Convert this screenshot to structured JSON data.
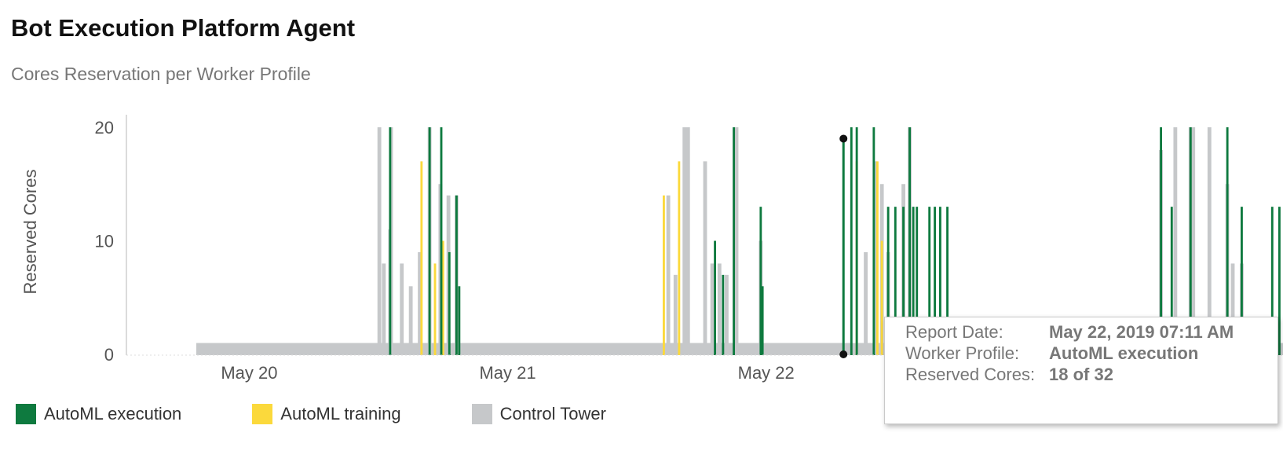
{
  "header": {
    "title": "Bot Execution Platform Agent",
    "subtitle": "Cores Reservation per Worker Profile"
  },
  "colors": {
    "automl_execution": "#0e7a3f",
    "automl_training": "#fbd93c",
    "control_tower": "#c6c8ca"
  },
  "chart_data": {
    "type": "area",
    "ylabel": "Reserved Cores",
    "ylim": [
      0,
      20
    ],
    "yticks": [
      "0",
      "10",
      "20"
    ],
    "xticks": [
      "May 20",
      "May 21",
      "May 22"
    ],
    "xlim": [
      "2019-05-19T12:40",
      "2019-05-24T00:00"
    ],
    "grid": false,
    "legend_position": "bottom-left",
    "series": [
      {
        "name": "Control Tower",
        "color": "#c6c8ca",
        "baseline": 1,
        "spikes": [
          [
            "2019-05-20T12:05",
            20
          ],
          [
            "2019-05-20T12:30",
            8
          ],
          [
            "2019-05-20T13:05",
            11
          ],
          [
            "2019-05-20T13:10",
            20
          ],
          [
            "2019-05-20T14:10",
            8
          ],
          [
            "2019-05-20T15:00",
            6
          ],
          [
            "2019-05-20T15:50",
            9
          ],
          [
            "2019-05-20T16:45",
            20
          ],
          [
            "2019-05-20T17:45",
            15
          ],
          [
            "2019-05-20T18:30",
            14
          ],
          [
            "2019-05-20T19:15",
            14
          ],
          [
            "2019-05-21T14:55",
            14
          ],
          [
            "2019-05-21T15:35",
            7
          ],
          [
            "2019-05-21T16:25",
            20
          ],
          [
            "2019-05-21T16:45",
            20
          ],
          [
            "2019-05-21T18:20",
            17
          ],
          [
            "2019-05-21T19:00",
            8
          ],
          [
            "2019-05-21T19:40",
            8
          ],
          [
            "2019-05-21T20:20",
            7
          ],
          [
            "2019-05-21T21:15",
            20
          ],
          [
            "2019-05-21T23:30",
            10
          ],
          [
            "2019-05-22T09:15",
            9
          ],
          [
            "2019-05-22T10:05",
            17
          ],
          [
            "2019-05-22T10:45",
            15
          ],
          [
            "2019-05-22T11:20",
            9
          ],
          [
            "2019-05-22T12:45",
            15
          ],
          [
            "2019-05-22T13:20",
            20
          ],
          [
            "2019-05-23T12:40",
            18
          ],
          [
            "2019-05-23T14:00",
            20
          ],
          [
            "2019-05-23T15:25",
            20
          ],
          [
            "2019-05-23T15:40",
            20
          ],
          [
            "2019-05-23T17:10",
            20
          ],
          [
            "2019-05-23T18:50",
            15
          ],
          [
            "2019-05-23T19:20",
            8
          ],
          [
            "2019-05-23T20:10",
            8
          ]
        ]
      },
      {
        "name": "AutoML training",
        "color": "#fbd93c",
        "baseline": 0,
        "spikes": [
          [
            "2019-05-20T16:00",
            17
          ],
          [
            "2019-05-20T17:15",
            8
          ],
          [
            "2019-05-20T18:00",
            10
          ],
          [
            "2019-05-21T14:30",
            14
          ],
          [
            "2019-05-21T15:55",
            17
          ],
          [
            "2019-05-22T08:25",
            17
          ],
          [
            "2019-05-22T10:20",
            17
          ],
          [
            "2019-05-22T10:45",
            10
          ]
        ]
      },
      {
        "name": "AutoML execution",
        "color": "#0e7a3f",
        "baseline": 0,
        "spikes": [
          [
            "2019-05-20T13:05",
            20
          ],
          [
            "2019-05-20T16:45",
            20
          ],
          [
            "2019-05-20T17:50",
            20
          ],
          [
            "2019-05-20T18:35",
            9
          ],
          [
            "2019-05-20T19:15",
            14
          ],
          [
            "2019-05-20T19:30",
            6
          ],
          [
            "2019-05-21T19:15",
            10
          ],
          [
            "2019-05-21T20:00",
            7
          ],
          [
            "2019-05-21T21:00",
            20
          ],
          [
            "2019-05-21T23:30",
            13
          ],
          [
            "2019-05-21T23:40",
            6
          ],
          [
            "2019-05-22T07:55",
            20
          ],
          [
            "2019-05-22T08:25",
            20
          ],
          [
            "2019-05-22T10:00",
            20
          ],
          [
            "2019-05-22T11:20",
            13
          ],
          [
            "2019-05-22T12:00",
            13
          ],
          [
            "2019-05-22T12:45",
            13
          ],
          [
            "2019-05-22T13:20",
            20
          ],
          [
            "2019-05-22T13:40",
            13
          ],
          [
            "2019-05-22T14:00",
            13
          ],
          [
            "2019-05-22T15:10",
            13
          ],
          [
            "2019-05-22T15:40",
            13
          ],
          [
            "2019-05-22T16:10",
            13
          ],
          [
            "2019-05-22T16:50",
            13
          ],
          [
            "2019-05-23T12:40",
            20
          ],
          [
            "2019-05-23T13:40",
            13
          ],
          [
            "2019-05-23T15:25",
            20
          ],
          [
            "2019-05-23T18:50",
            20
          ],
          [
            "2019-05-23T20:10",
            13
          ],
          [
            "2019-05-23T23:00",
            13
          ],
          [
            "2019-05-23T23:40",
            13
          ]
        ]
      }
    ],
    "legend": [
      "AutoML execution",
      "AutoML training",
      "Control Tower"
    ],
    "tooltip": {
      "rows": [
        {
          "label": "Report Date:",
          "value": "May 22, 2019 07:11 AM"
        },
        {
          "label": "Worker Profile:",
          "value": "AutoML execution"
        },
        {
          "label": "Reserved Cores:",
          "value": "18 of 32"
        }
      ],
      "marker_time": "2019-05-22T07:11",
      "marker_values": [
        19,
        0
      ]
    }
  }
}
